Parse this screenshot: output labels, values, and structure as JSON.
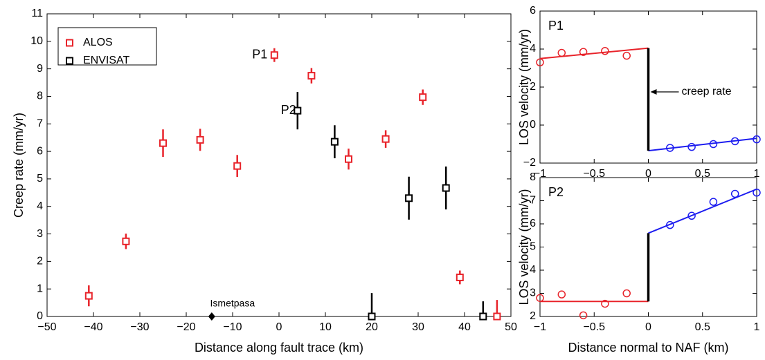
{
  "chart_data": [
    {
      "type": "errorbar",
      "xlabel": "Distance along fault trace (km)",
      "ylabel": "Creep rate (mm/yr)",
      "xlim": [
        -50,
        50
      ],
      "ylim": [
        0,
        11
      ],
      "xticks": [
        {
          "value": -50,
          "label": "−50"
        },
        {
          "value": -40,
          "label": "−40"
        },
        {
          "value": -30,
          "label": "−30"
        },
        {
          "value": -20,
          "label": "−20"
        },
        {
          "value": -10,
          "label": "−10"
        },
        0,
        10,
        20,
        30,
        40,
        50
      ],
      "yticks": [
        0,
        1,
        2,
        3,
        4,
        5,
        6,
        7,
        8,
        9,
        10,
        11
      ],
      "legend": "upper left",
      "annotations": [
        "P1",
        "P2"
      ],
      "landmark": {
        "label": "Ismetpasa",
        "x": -14.5,
        "y": 0
      },
      "series": [
        {
          "name": "ALOS",
          "color": "#e8232a",
          "marker": "square",
          "x": [
            -41,
            -33,
            -25,
            -17,
            -9,
            -1,
            7,
            15,
            23,
            31,
            39,
            47
          ],
          "values": [
            0.75,
            2.73,
            6.3,
            6.42,
            5.47,
            9.5,
            8.75,
            5.72,
            6.45,
            7.97,
            1.42,
            0
          ],
          "errors": [
            0.38,
            0.28,
            0.5,
            0.4,
            0.4,
            0.25,
            0.28,
            0.38,
            0.32,
            0.28,
            0.25,
            0.6
          ]
        },
        {
          "name": "ENVISAT",
          "color": "#000000",
          "marker": "square",
          "x": [
            4,
            12,
            20,
            28,
            36,
            44
          ],
          "values": [
            7.48,
            6.35,
            0,
            4.3,
            4.67,
            0
          ],
          "errors": [
            0.68,
            0.6,
            0.85,
            0.78,
            0.78,
            0.55
          ]
        }
      ]
    },
    {
      "type": "scatter",
      "title": "P1",
      "ylabel": "LOS velocity (mm/yr)",
      "annotation": "creep rate",
      "xlim": [
        -1,
        1
      ],
      "ylim": [
        -2,
        6
      ],
      "xticks": [
        {
          "value": -1,
          "label": "−1"
        },
        {
          "value": -0.5,
          "label": "−0.5"
        },
        0,
        0.5,
        1
      ],
      "yticks": [
        {
          "value": -2,
          "label": "−2"
        },
        0,
        2,
        4,
        6
      ],
      "series": [
        {
          "color": "#e8232a",
          "marker": "circle",
          "x": [
            -1,
            -0.8,
            -0.6,
            -0.4,
            -0.2
          ],
          "values": [
            3.3,
            3.8,
            3.85,
            3.9,
            3.65
          ]
        },
        {
          "color": "#1c1cf0",
          "marker": "circle",
          "x": [
            0.2,
            0.4,
            0.6,
            0.8,
            1
          ],
          "values": [
            -1.2,
            -1.15,
            -1.0,
            -0.85,
            -0.75
          ]
        },
        {
          "color": "#e8232a",
          "marker": "line",
          "x": [
            -1,
            0
          ],
          "values": [
            3.5,
            4.05
          ]
        },
        {
          "color": "#1c1cf0",
          "marker": "line",
          "x": [
            0,
            1
          ],
          "values": [
            -1.35,
            -0.7
          ]
        },
        {
          "color": "#000000",
          "marker": "line",
          "x": [
            0,
            0
          ],
          "values": [
            -1.35,
            4.05
          ]
        }
      ]
    },
    {
      "type": "scatter",
      "title": "P2",
      "ylabel": "LOS velocity (mm/yr)",
      "xlabel": "Distance normal to NAF (km)",
      "xlim": [
        -1,
        1
      ],
      "ylim": [
        2,
        8
      ],
      "xticks": [
        {
          "value": -1,
          "label": "−1"
        },
        {
          "value": -0.5,
          "label": "−0.5"
        },
        0,
        0.5,
        1
      ],
      "yticks": [
        2,
        3,
        4,
        5,
        6,
        7,
        8
      ],
      "series": [
        {
          "color": "#e8232a",
          "marker": "circle",
          "x": [
            -1,
            -0.8,
            -0.6,
            -0.4,
            -0.2
          ],
          "values": [
            2.8,
            2.95,
            2.05,
            2.55,
            3.0
          ]
        },
        {
          "color": "#1c1cf0",
          "marker": "circle",
          "x": [
            0.2,
            0.4,
            0.6,
            0.8,
            1
          ],
          "values": [
            5.95,
            6.35,
            6.95,
            7.3,
            7.35
          ]
        },
        {
          "color": "#e8232a",
          "marker": "line",
          "x": [
            -1,
            0
          ],
          "values": [
            2.65,
            2.65
          ]
        },
        {
          "color": "#1c1cf0",
          "marker": "line",
          "x": [
            0,
            1
          ],
          "values": [
            5.6,
            7.5
          ]
        },
        {
          "color": "#000000",
          "marker": "line",
          "x": [
            0,
            0
          ],
          "values": [
            2.65,
            5.6
          ]
        }
      ]
    }
  ]
}
